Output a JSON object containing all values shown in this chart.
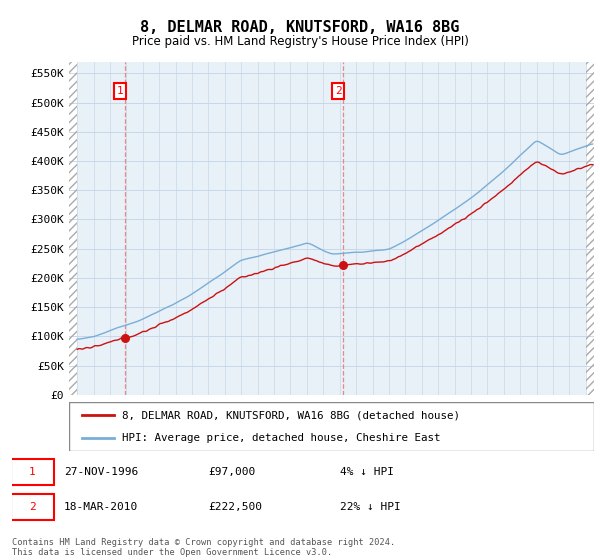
{
  "title": "8, DELMAR ROAD, KNUTSFORD, WA16 8BG",
  "subtitle": "Price paid vs. HM Land Registry's House Price Index (HPI)",
  "legend_line1": "8, DELMAR ROAD, KNUTSFORD, WA16 8BG (detached house)",
  "legend_line2": "HPI: Average price, detached house, Cheshire East",
  "footer": "Contains HM Land Registry data © Crown copyright and database right 2024.\nThis data is licensed under the Open Government Licence v3.0.",
  "annotation1_date": "27-NOV-1996",
  "annotation1_price": "£97,000",
  "annotation1_hpi": "4% ↓ HPI",
  "annotation2_date": "18-MAR-2010",
  "annotation2_price": "£222,500",
  "annotation2_hpi": "22% ↓ HPI",
  "sale1_x": 1996.92,
  "sale1_y": 97000,
  "sale2_x": 2010.21,
  "sale2_y": 222500,
  "hpi_color": "#7aaed6",
  "price_color": "#cc1111",
  "vline_color": "#e88888",
  "sale_dot_color": "#cc1111",
  "bg_plot_color": "#e8f0f8",
  "hatch_color": "#aaaaaa",
  "grid_color": "#c8d8e8",
  "ylim": [
    0,
    570000
  ],
  "yticks": [
    0,
    50000,
    100000,
    150000,
    200000,
    250000,
    300000,
    350000,
    400000,
    450000,
    500000,
    550000
  ],
  "xlim_start": 1993.5,
  "xlim_end": 2025.5,
  "hpi_base_1994": 95000,
  "price_scale_before_sale1": 1.0,
  "price_scale_after_sale2": 0.78
}
